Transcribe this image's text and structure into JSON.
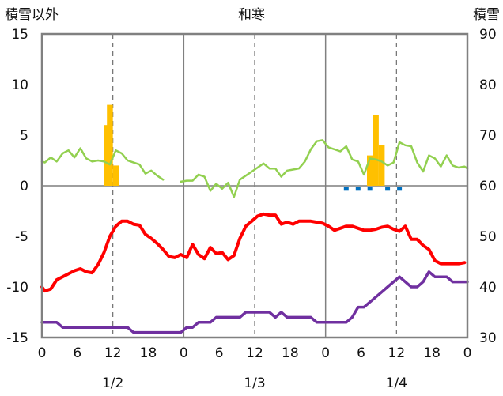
{
  "chart_data": {
    "type": "line",
    "title": "和寒",
    "left_axis_title": "積雪以外",
    "right_axis_title": "積雪",
    "ylim": [
      -15,
      15
    ],
    "yticks": [
      15,
      10,
      5,
      0,
      -5,
      -10,
      -15
    ],
    "y2lim": [
      30,
      90
    ],
    "y2ticks": [
      90,
      80,
      70,
      60,
      50,
      40,
      30
    ],
    "x_range_hours": [
      0,
      72
    ],
    "xtick_labels": [
      "0",
      "6",
      "12",
      "18",
      "0",
      "6",
      "12",
      "18",
      "0",
      "6",
      "12",
      "18",
      "0"
    ],
    "date_labels": [
      "1/2",
      "1/3",
      "1/4"
    ],
    "grid": true,
    "series": [
      {
        "kind": "line",
        "axis": "left",
        "color": "#ff0000",
        "points": [
          [
            0,
            -10
          ],
          [
            0.5,
            -10.4
          ],
          [
            1.5,
            -10.2
          ],
          [
            2.5,
            -9.3
          ],
          [
            3.5,
            -9
          ],
          [
            4.5,
            -8.7
          ],
          [
            5.5,
            -8.4
          ],
          [
            6.5,
            -8.2
          ],
          [
            7.5,
            -8.5
          ],
          [
            8.5,
            -8.6
          ],
          [
            9.5,
            -7.8
          ],
          [
            10.5,
            -6.6
          ],
          [
            11.5,
            -5
          ],
          [
            12.5,
            -4
          ],
          [
            13.5,
            -3.5
          ],
          [
            14.5,
            -3.5
          ],
          [
            15.5,
            -3.8
          ],
          [
            16.5,
            -3.9
          ],
          [
            17.5,
            -4.8
          ],
          [
            18.5,
            -5.2
          ],
          [
            19.5,
            -5.7
          ],
          [
            20.5,
            -6.3
          ],
          [
            21.5,
            -7
          ],
          [
            22.5,
            -7.1
          ],
          [
            23.5,
            -6.8
          ],
          [
            24.5,
            -7.1
          ],
          [
            25.5,
            -5.8
          ],
          [
            26.5,
            -6.8
          ],
          [
            27.5,
            -7.2
          ],
          [
            28.5,
            -6.1
          ],
          [
            29.5,
            -6.7
          ],
          [
            30.5,
            -6.6
          ],
          [
            31.5,
            -7.3
          ],
          [
            32.5,
            -6.9
          ],
          [
            33.5,
            -5.2
          ],
          [
            34.5,
            -4
          ],
          [
            35.5,
            -3.5
          ],
          [
            36.5,
            -3
          ],
          [
            37.5,
            -2.8
          ],
          [
            38.5,
            -2.9
          ],
          [
            39.5,
            -2.9
          ],
          [
            40.5,
            -3.8
          ],
          [
            41.5,
            -3.6
          ],
          [
            42.5,
            -3.8
          ],
          [
            43.5,
            -3.5
          ],
          [
            44.5,
            -3.5
          ],
          [
            45.5,
            -3.5
          ],
          [
            46.5,
            -3.6
          ],
          [
            47.5,
            -3.7
          ],
          [
            48.5,
            -4
          ],
          [
            49.5,
            -4.4
          ],
          [
            50.5,
            -4.2
          ],
          [
            51.5,
            -4
          ],
          [
            52.5,
            -4
          ],
          [
            53.5,
            -4.2
          ],
          [
            54.5,
            -4.4
          ],
          [
            55.5,
            -4.4
          ],
          [
            56.5,
            -4.3
          ],
          [
            57.5,
            -4.1
          ],
          [
            58.5,
            -4
          ],
          [
            59.5,
            -4.3
          ],
          [
            60.5,
            -4.5
          ],
          [
            61.5,
            -4
          ],
          [
            62.5,
            -5.3
          ],
          [
            63.5,
            -5.3
          ],
          [
            64.5,
            -5.9
          ],
          [
            65.5,
            -6.3
          ],
          [
            66.5,
            -7.4
          ],
          [
            67.5,
            -7.7
          ],
          [
            68.5,
            -7.7
          ],
          [
            69.5,
            -7.7
          ],
          [
            70.5,
            -7.7
          ],
          [
            71.5,
            -7.6
          ]
        ]
      },
      {
        "kind": "line",
        "axis": "left",
        "color": "#92d050",
        "segments": [
          [
            [
              0,
              2.4
            ],
            [
              0.5,
              2.3
            ],
            [
              1.5,
              2.8
            ],
            [
              2.5,
              2.4
            ],
            [
              3.5,
              3.2
            ],
            [
              4.5,
              3.5
            ],
            [
              5.5,
              2.8
            ],
            [
              6.5,
              3.7
            ],
            [
              7.5,
              2.7
            ],
            [
              8.5,
              2.4
            ],
            [
              9.5,
              2.5
            ],
            [
              10.5,
              2.4
            ],
            [
              11.5,
              2.1
            ],
            [
              12.5,
              3.5
            ],
            [
              13.5,
              3.2
            ],
            [
              14.5,
              2.5
            ],
            [
              15.5,
              2.3
            ],
            [
              16.5,
              2.1
            ],
            [
              17.5,
              1.2
            ],
            [
              18.5,
              1.5
            ],
            [
              19.5,
              1
            ],
            [
              20.5,
              0.6
            ]
          ],
          [
            [
              23.5,
              0.4
            ],
            [
              24.5,
              0.5
            ],
            [
              25.5,
              0.5
            ],
            [
              26.5,
              1.1
            ],
            [
              27.5,
              0.9
            ],
            [
              28.5,
              -0.5
            ],
            [
              29.5,
              0.2
            ],
            [
              30.5,
              -0.3
            ],
            [
              31.5,
              0.3
            ],
            [
              32.5,
              -1.1
            ],
            [
              33.5,
              0.6
            ],
            [
              34.5,
              1
            ],
            [
              35.5,
              1.4
            ],
            [
              36.5,
              1.8
            ],
            [
              37.5,
              2.2
            ],
            [
              38.5,
              1.7
            ],
            [
              39.5,
              1.7
            ],
            [
              40.5,
              0.9
            ],
            [
              41.5,
              1.5
            ],
            [
              42.5,
              1.6
            ],
            [
              43.5,
              1.7
            ],
            [
              44.5,
              2.4
            ],
            [
              45.5,
              3.6
            ],
            [
              46.5,
              4.4
            ],
            [
              47.5,
              4.5
            ],
            [
              48.5,
              3.8
            ],
            [
              49.5,
              3.6
            ],
            [
              50.5,
              3.4
            ],
            [
              51.5,
              3.9
            ],
            [
              52.5,
              2.6
            ],
            [
              53.5,
              2.4
            ],
            [
              54.5,
              1.1
            ],
            [
              55.5,
              2.7
            ],
            [
              56.5,
              2.6
            ],
            [
              57.5,
              2.4
            ],
            [
              58.5,
              2
            ],
            [
              59.5,
              2.3
            ],
            [
              60.5,
              4.3
            ],
            [
              61.5,
              4
            ],
            [
              62.5,
              3.9
            ],
            [
              63.5,
              2.3
            ],
            [
              64.5,
              1.4
            ],
            [
              65.5,
              3
            ],
            [
              66.5,
              2.7
            ],
            [
              67.5,
              1.9
            ],
            [
              68.5,
              3
            ],
            [
              69.5,
              2
            ],
            [
              70.5,
              1.8
            ],
            [
              71.5,
              1.9
            ],
            [
              72,
              1.7
            ]
          ]
        ]
      },
      {
        "kind": "line",
        "axis": "left",
        "color": "#7030a0",
        "points": [
          [
            0,
            -13.5
          ],
          [
            0.5,
            -13.5
          ],
          [
            1.5,
            -13.5
          ],
          [
            2.5,
            -13.5
          ],
          [
            3.5,
            -14
          ],
          [
            4.5,
            -14
          ],
          [
            5.5,
            -14
          ],
          [
            6.5,
            -14
          ],
          [
            7.5,
            -14
          ],
          [
            8.5,
            -14
          ],
          [
            9.5,
            -14
          ],
          [
            10.5,
            -14
          ],
          [
            11.5,
            -14
          ],
          [
            12.5,
            -14
          ],
          [
            13.5,
            -14
          ],
          [
            14.5,
            -14
          ],
          [
            15.5,
            -14.5
          ],
          [
            16.5,
            -14.5
          ],
          [
            17.5,
            -14.5
          ],
          [
            18.5,
            -14.5
          ],
          [
            19.5,
            -14.5
          ],
          [
            20.5,
            -14.5
          ],
          [
            21.5,
            -14.5
          ],
          [
            22.5,
            -14.5
          ],
          [
            23.5,
            -14.5
          ],
          [
            24.5,
            -14
          ],
          [
            25.5,
            -14
          ],
          [
            26.5,
            -13.5
          ],
          [
            27.5,
            -13.5
          ],
          [
            28.5,
            -13.5
          ],
          [
            29.5,
            -13
          ],
          [
            30.5,
            -13
          ],
          [
            31.5,
            -13
          ],
          [
            32.5,
            -13
          ],
          [
            33.5,
            -13
          ],
          [
            34.5,
            -12.5
          ],
          [
            35.5,
            -12.5
          ],
          [
            36.5,
            -12.5
          ],
          [
            37.5,
            -12.5
          ],
          [
            38.5,
            -12.5
          ],
          [
            39.5,
            -13
          ],
          [
            40.5,
            -12.5
          ],
          [
            41.5,
            -13
          ],
          [
            42.5,
            -13
          ],
          [
            43.5,
            -13
          ],
          [
            44.5,
            -13
          ],
          [
            45.5,
            -13
          ],
          [
            46.5,
            -13.5
          ],
          [
            47.5,
            -13.5
          ],
          [
            48.5,
            -13.5
          ],
          [
            49.5,
            -13.5
          ],
          [
            50.5,
            -13.5
          ],
          [
            51.5,
            -13.5
          ],
          [
            52.5,
            -13
          ],
          [
            53.5,
            -12
          ],
          [
            54.5,
            -12
          ],
          [
            55.5,
            -11.5
          ],
          [
            56.5,
            -11
          ],
          [
            57.5,
            -10.5
          ],
          [
            58.5,
            -10
          ],
          [
            59.5,
            -9.5
          ],
          [
            60.5,
            -9
          ],
          [
            61.5,
            -9.5
          ],
          [
            62.5,
            -10
          ],
          [
            63.5,
            -10
          ],
          [
            64.5,
            -9.5
          ],
          [
            65.5,
            -8.5
          ],
          [
            66.5,
            -9
          ],
          [
            67.5,
            -9
          ],
          [
            68.5,
            -9
          ],
          [
            69.5,
            -9.5
          ],
          [
            70.5,
            -9.5
          ],
          [
            71.5,
            -9.5
          ],
          [
            72,
            -9.5
          ]
        ]
      },
      {
        "kind": "bar",
        "axis": "left",
        "color": "#ffc000",
        "bars": [
          [
            11,
            6
          ],
          [
            11.5,
            8
          ],
          [
            12.5,
            2
          ],
          [
            55.5,
            3
          ],
          [
            56.5,
            7
          ],
          [
            57.5,
            4
          ]
        ]
      },
      {
        "kind": "dash",
        "axis": "left",
        "color": "#0070c0",
        "points": [
          [
            51.5,
            -0.3
          ],
          [
            53.5,
            -0.3
          ],
          [
            55.5,
            -0.3
          ],
          [
            58.5,
            -0.3
          ],
          [
            60.5,
            -0.3
          ]
        ]
      }
    ]
  }
}
